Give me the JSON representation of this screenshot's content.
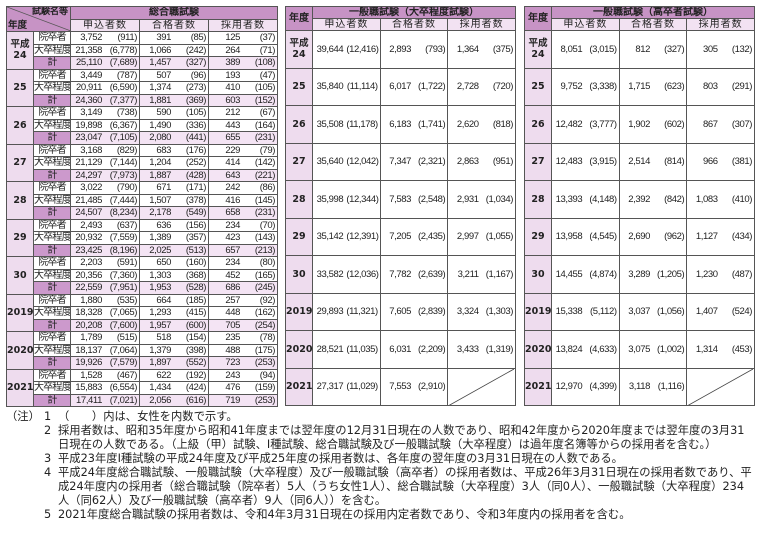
{
  "sogo": {
    "corner_top": "試験名等",
    "corner_bottom": "年度",
    "title": "総合職試験",
    "headers": [
      "申込者数",
      "合格者数",
      "採用者数"
    ],
    "years": [
      {
        "label": "平成\n24",
        "rows": [
          [
            "院卒者",
            "3,752",
            "(911)",
            "391",
            "(85)",
            "125",
            "(37)"
          ],
          [
            "大卒程度",
            "21,358",
            "(6,778)",
            "1,066",
            "(242)",
            "264",
            "(71)"
          ],
          [
            "計",
            "25,110",
            "(7,689)",
            "1,457",
            "(327)",
            "389",
            "(108)"
          ]
        ]
      },
      {
        "label": "25",
        "rows": [
          [
            "院卒者",
            "3,449",
            "(787)",
            "507",
            "(96)",
            "193",
            "(47)"
          ],
          [
            "大卒程度",
            "20,911",
            "(6,590)",
            "1,374",
            "(273)",
            "410",
            "(105)"
          ],
          [
            "計",
            "24,360",
            "(7,377)",
            "1,881",
            "(369)",
            "603",
            "(152)"
          ]
        ]
      },
      {
        "label": "26",
        "rows": [
          [
            "院卒者",
            "3,149",
            "(738)",
            "590",
            "(105)",
            "212",
            "(67)"
          ],
          [
            "大卒程度",
            "19,898",
            "(6,367)",
            "1,490",
            "(336)",
            "443",
            "(164)"
          ],
          [
            "計",
            "23,047",
            "(7,105)",
            "2,080",
            "(441)",
            "655",
            "(231)"
          ]
        ]
      },
      {
        "label": "27",
        "rows": [
          [
            "院卒者",
            "3,168",
            "(829)",
            "683",
            "(176)",
            "229",
            "(79)"
          ],
          [
            "大卒程度",
            "21,129",
            "(7,144)",
            "1,204",
            "(252)",
            "414",
            "(142)"
          ],
          [
            "計",
            "24,297",
            "(7,973)",
            "1,887",
            "(428)",
            "643",
            "(221)"
          ]
        ]
      },
      {
        "label": "28",
        "rows": [
          [
            "院卒者",
            "3,022",
            "(790)",
            "671",
            "(171)",
            "242",
            "(86)"
          ],
          [
            "大卒程度",
            "21,485",
            "(7,444)",
            "1,507",
            "(378)",
            "416",
            "(145)"
          ],
          [
            "計",
            "24,507",
            "(8,234)",
            "2,178",
            "(549)",
            "658",
            "(231)"
          ]
        ]
      },
      {
        "label": "29",
        "rows": [
          [
            "院卒者",
            "2,493",
            "(637)",
            "636",
            "(156)",
            "234",
            "(70)"
          ],
          [
            "大卒程度",
            "20,932",
            "(7,559)",
            "1,389",
            "(357)",
            "423",
            "(143)"
          ],
          [
            "計",
            "23,425",
            "(8,196)",
            "2,025",
            "(513)",
            "657",
            "(213)"
          ]
        ]
      },
      {
        "label": "30",
        "rows": [
          [
            "院卒者",
            "2,203",
            "(591)",
            "650",
            "(160)",
            "234",
            "(80)"
          ],
          [
            "大卒程度",
            "20,356",
            "(7,360)",
            "1,303",
            "(368)",
            "452",
            "(165)"
          ],
          [
            "計",
            "22,559",
            "(7,951)",
            "1,953",
            "(528)",
            "686",
            "(245)"
          ]
        ]
      },
      {
        "label": "2019",
        "rows": [
          [
            "院卒者",
            "1,880",
            "(535)",
            "664",
            "(185)",
            "257",
            "(92)"
          ],
          [
            "大卒程度",
            "18,328",
            "(7,065)",
            "1,293",
            "(415)",
            "448",
            "(162)"
          ],
          [
            "計",
            "20,208",
            "(7,600)",
            "1,957",
            "(600)",
            "705",
            "(254)"
          ]
        ]
      },
      {
        "label": "2020",
        "rows": [
          [
            "院卒者",
            "1,789",
            "(515)",
            "518",
            "(154)",
            "235",
            "(78)"
          ],
          [
            "大卒程度",
            "18,137",
            "(7,064)",
            "1,379",
            "(398)",
            "488",
            "(175)"
          ],
          [
            "計",
            "19,926",
            "(7,579)",
            "1,897",
            "(552)",
            "723",
            "(253)"
          ]
        ]
      },
      {
        "label": "2021",
        "rows": [
          [
            "院卒者",
            "1,528",
            "(467)",
            "622",
            "(192)",
            "243",
            "(94)"
          ],
          [
            "大卒程度",
            "15,883",
            "(6,554)",
            "1,434",
            "(424)",
            "476",
            "(159)"
          ],
          [
            "計",
            "17,411",
            "(7,021)",
            "2,056",
            "(616)",
            "719",
            "(253)"
          ]
        ]
      }
    ]
  },
  "ippan_daisotsu": {
    "year_header": "年度",
    "title": "一般職試験（大卒程度試験）",
    "headers": [
      "申込者数",
      "合格者数",
      "採用者数"
    ],
    "years": [
      {
        "label": "平成\n24",
        "row": [
          "39,644",
          "(12,416)",
          "2,893",
          "(793)",
          "1,364",
          "(375)"
        ]
      },
      {
        "label": "25",
        "row": [
          "35,840",
          "(11,114)",
          "6,017",
          "(1,722)",
          "2,728",
          "(720)"
        ]
      },
      {
        "label": "26",
        "row": [
          "35,508",
          "(11,178)",
          "6,183",
          "(1,741)",
          "2,620",
          "(818)"
        ]
      },
      {
        "label": "27",
        "row": [
          "35,640",
          "(12,042)",
          "7,347",
          "(2,321)",
          "2,863",
          "(951)"
        ]
      },
      {
        "label": "28",
        "row": [
          "35,998",
          "(12,344)",
          "7,583",
          "(2,548)",
          "2,931",
          "(1,034)"
        ]
      },
      {
        "label": "29",
        "row": [
          "35,142",
          "(12,391)",
          "7,205",
          "(2,435)",
          "2,997",
          "(1,055)"
        ]
      },
      {
        "label": "30",
        "row": [
          "33,582",
          "(12,036)",
          "7,782",
          "(2,639)",
          "3,211",
          "(1,167)"
        ]
      },
      {
        "label": "2019",
        "row": [
          "29,893",
          "(11,321)",
          "7,605",
          "(2,839)",
          "3,324",
          "(1,303)"
        ]
      },
      {
        "label": "2020",
        "row": [
          "28,521",
          "(11,035)",
          "6,031",
          "(2,209)",
          "3,433",
          "(1,319)"
        ]
      },
      {
        "label": "2021",
        "row": [
          "27,317",
          "(11,029)",
          "7,553",
          "(2,910)"
        ]
      }
    ]
  },
  "ippan_kousotsu": {
    "year_header": "年度",
    "title": "一般職試験（高卒者試験）",
    "headers": [
      "申込者数",
      "合格者数",
      "採用者数"
    ],
    "years": [
      {
        "label": "平成\n24",
        "row": [
          "8,051",
          "(3,015)",
          "812",
          "(327)",
          "305",
          "(132)"
        ]
      },
      {
        "label": "25",
        "row": [
          "9,752",
          "(3,338)",
          "1,715",
          "(623)",
          "803",
          "(291)"
        ]
      },
      {
        "label": "26",
        "row": [
          "12,482",
          "(3,777)",
          "1,902",
          "(602)",
          "867",
          "(307)"
        ]
      },
      {
        "label": "27",
        "row": [
          "12,483",
          "(3,915)",
          "2,514",
          "(814)",
          "966",
          "(381)"
        ]
      },
      {
        "label": "28",
        "row": [
          "13,393",
          "(4,148)",
          "2,392",
          "(842)",
          "1,083",
          "(410)"
        ]
      },
      {
        "label": "29",
        "row": [
          "13,958",
          "(4,545)",
          "2,690",
          "(962)",
          "1,127",
          "(434)"
        ]
      },
      {
        "label": "30",
        "row": [
          "14,455",
          "(4,874)",
          "3,289",
          "(1,205)",
          "1,230",
          "(487)"
        ]
      },
      {
        "label": "2019",
        "row": [
          "15,338",
          "(5,112)",
          "3,037",
          "(1,056)",
          "1,407",
          "(524)"
        ]
      },
      {
        "label": "2020",
        "row": [
          "13,824",
          "(4,633)",
          "3,075",
          "(1,002)",
          "1,314",
          "(453)"
        ]
      },
      {
        "label": "2021",
        "row": [
          "12,970",
          "(4,399)",
          "3,118",
          "(1,116)"
        ]
      }
    ]
  },
  "notes": {
    "label": "（注）",
    "items": [
      {
        "num": "1",
        "text": "（　　）内は、女性を内数で示す。"
      },
      {
        "num": "2",
        "text": "採用者数は、昭和35年度から昭和41年度までは翌年度の12月31日現在の人数であり、昭和42年度から2020年度までは翌年度の3月31日現在の人数である。（上級（甲）試験、Ⅰ種試験、総合職試験及び一般職試験（大卒程度）は過年度名簿等からの採用者を含む。）"
      },
      {
        "num": "3",
        "text": "平成23年度Ⅰ種試験の平成24年度及び平成25年度の採用者数は、各年度の翌年度の3月31日現在の人数である。"
      },
      {
        "num": "4",
        "text": "平成24年度総合職試験、一般職試験（大卒程度）及び一般職試験（高卒者）の採用者数は、平成26年3月31日現在の採用者数であり、平成24年度内の採用者（総合職試験（院卒者）5人（うち女性1人）、総合職試験（大卒程度）3人（同0人）、一般職試験（大卒程度）234人（同62人）及び一般職試験（高卒者）9人（同6人））を含む。"
      },
      {
        "num": "5",
        "text": "2021年度総合職試験の採用者数は、令和4年3月31日現在の採用内定者数であり、令和3年度内の採用者を含む。"
      }
    ]
  }
}
